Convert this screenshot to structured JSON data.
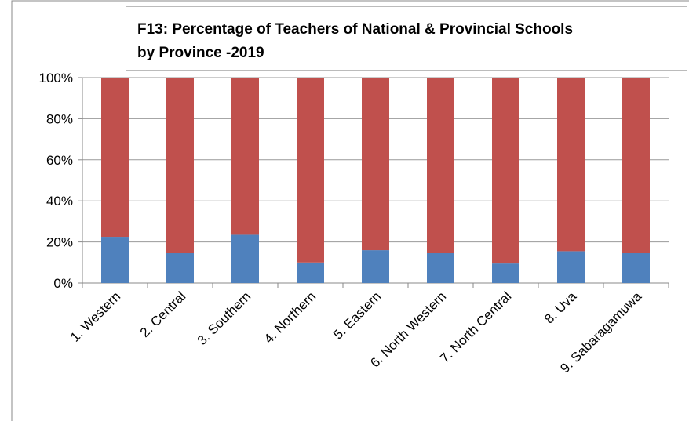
{
  "chart_data": {
    "type": "stacked_bar",
    "title": "F13: Percentage of Teachers of National & Provincial Schools by Province -2019",
    "categories": [
      "1. Western",
      "2. Central",
      "3. Southern",
      "4. Northern",
      "5. Eastern",
      "6. North Western",
      "7. North Central",
      "8. Uva",
      "9. Sabaragamuwa"
    ],
    "series": [
      {
        "color": "#4f81bd",
        "values": [
          22.5,
          14.5,
          23.5,
          10,
          16,
          14.5,
          9.5,
          15.5,
          14.5
        ]
      },
      {
        "color": "#c0504d",
        "values": [
          77.5,
          85.5,
          76.5,
          90,
          84,
          85.5,
          90.5,
          84.5,
          85.5
        ]
      }
    ],
    "ylim": [
      0,
      100
    ],
    "yticks": [
      {
        "value": 0,
        "label": "0%"
      },
      {
        "value": 20,
        "label": "20%"
      },
      {
        "value": 40,
        "label": "40%"
      },
      {
        "value": 60,
        "label": "60%"
      },
      {
        "value": 80,
        "label": "80%"
      },
      {
        "value": 100,
        "label": "100%"
      }
    ],
    "grid": true
  }
}
